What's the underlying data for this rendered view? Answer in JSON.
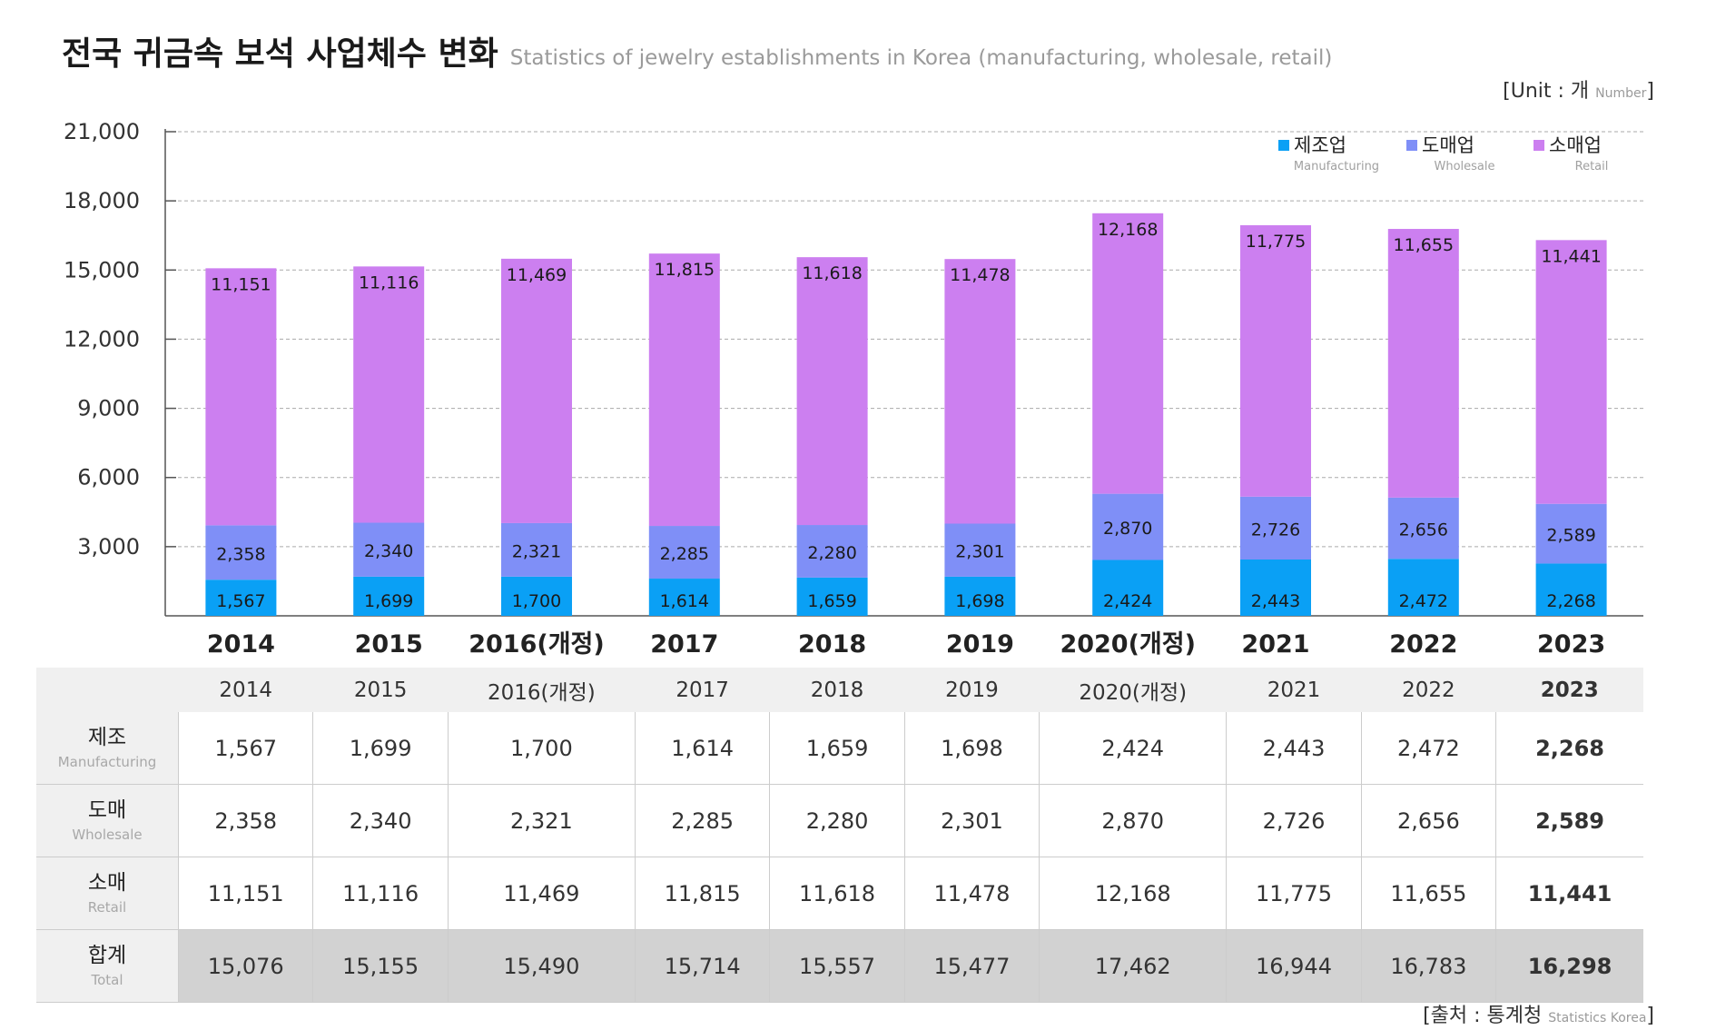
{
  "title": {
    "main": "전국 귀금속 보석 사업체수 변화",
    "sub": "Statistics of jewelry establishments in Korea (manufacturing, wholesale, retail)"
  },
  "unit": {
    "label": "[Unit : 개 ",
    "small": "Number",
    "close": "]"
  },
  "source": {
    "label": "[출처 : 통계청 ",
    "small": "Statistics Korea",
    "close": "]"
  },
  "colors": {
    "manufacturing": "#0aa0f5",
    "wholesale": "#7f8ff7",
    "retail": "#cc7ff0"
  },
  "chart_data": {
    "type": "bar",
    "stacked": true,
    "categories": [
      "2014",
      "2015",
      "2016(개정)",
      "2017",
      "2018",
      "2019",
      "2020(개정)",
      "2021",
      "2022",
      "2023"
    ],
    "series": [
      {
        "name": "제조업",
        "name_en": "Manufacturing",
        "color": "#0aa0f5",
        "values": [
          1567,
          1699,
          1700,
          1614,
          1659,
          1698,
          2424,
          2443,
          2472,
          2268
        ]
      },
      {
        "name": "도매업",
        "name_en": "Wholesale",
        "color": "#7f8ff7",
        "values": [
          2358,
          2340,
          2321,
          2285,
          2280,
          2301,
          2870,
          2726,
          2656,
          2589
        ]
      },
      {
        "name": "소매업",
        "name_en": "Retail",
        "color": "#cc7ff0",
        "values": [
          11151,
          11116,
          11469,
          11815,
          11618,
          11478,
          12168,
          11775,
          11655,
          11441
        ]
      }
    ],
    "ylim": [
      0,
      21000
    ],
    "yticks": [
      "3,000",
      "6,000",
      "9,000",
      "12,000",
      "15,000",
      "18,000",
      "21,000"
    ],
    "ytick_values": [
      3000,
      6000,
      9000,
      12000,
      15000,
      18000,
      21000
    ],
    "grid": true,
    "legend_position": "top-right"
  },
  "table": {
    "columns": [
      "2014",
      "2015",
      "2016(개정)",
      "2017",
      "2018",
      "2019",
      "2020(개정)",
      "2021",
      "2022",
      "2023"
    ],
    "rows": [
      {
        "ko": "제조",
        "en": "Manufacturing",
        "cells": [
          "1,567",
          "1,699",
          "1,700",
          "1,614",
          "1,659",
          "1,698",
          "2,424",
          "2,443",
          "2,472",
          "2,268"
        ]
      },
      {
        "ko": "도매",
        "en": "Wholesale",
        "cells": [
          "2,358",
          "2,340",
          "2,321",
          "2,285",
          "2,280",
          "2,301",
          "2,870",
          "2,726",
          "2,656",
          "2,589"
        ]
      },
      {
        "ko": "소매",
        "en": "Retail",
        "cells": [
          "11,151",
          "11,116",
          "11,469",
          "11,815",
          "11,618",
          "11,478",
          "12,168",
          "11,775",
          "11,655",
          "11,441"
        ]
      },
      {
        "ko": "합계",
        "en": "Total",
        "cells": [
          "15,076",
          "15,155",
          "15,490",
          "15,714",
          "15,557",
          "15,477",
          "17,462",
          "16,944",
          "16,783",
          "16,298"
        ]
      }
    ]
  }
}
